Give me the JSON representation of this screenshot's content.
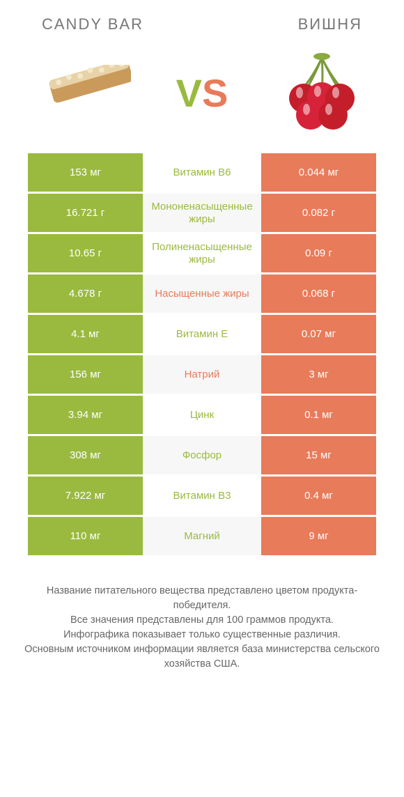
{
  "header": {
    "left": "CANDY BAR",
    "right": "ВИШНЯ"
  },
  "vs": {
    "v": "V",
    "s": "S"
  },
  "colors": {
    "green": "#9aba3f",
    "orange": "#e87b5a",
    "row_alt_bg": "#f7f7f7",
    "text": "#555555",
    "header_text": "#777777"
  },
  "rows": [
    {
      "left": "153 мг",
      "label": "Витамин B6",
      "right": "0.044 мг",
      "winner": "left"
    },
    {
      "left": "16.721 г",
      "label": "Мононенасыщенные жиры",
      "right": "0.082 г",
      "winner": "left"
    },
    {
      "left": "10.65 г",
      "label": "Полиненасыщенные жиры",
      "right": "0.09 г",
      "winner": "left"
    },
    {
      "left": "4.678 г",
      "label": "Насыщенные жиры",
      "right": "0.068 г",
      "winner": "right"
    },
    {
      "left": "4.1 мг",
      "label": "Витамин E",
      "right": "0.07 мг",
      "winner": "left"
    },
    {
      "left": "156 мг",
      "label": "Натрий",
      "right": "3 мг",
      "winner": "right"
    },
    {
      "left": "3.94 мг",
      "label": "Цинк",
      "right": "0.1 мг",
      "winner": "left"
    },
    {
      "left": "308 мг",
      "label": "Фосфор",
      "right": "15 мг",
      "winner": "left"
    },
    {
      "left": "7.922 мг",
      "label": "Витамин B3",
      "right": "0.4 мг",
      "winner": "left"
    },
    {
      "left": "110 мг",
      "label": "Магний",
      "right": "9 мг",
      "winner": "left"
    }
  ],
  "footer": {
    "line1": "Название питательного вещества представлено цветом продукта-победителя.",
    "line2": "Все значения представлены для 100 граммов продукта.",
    "line3": "Инфографика показывает только существенные различия.",
    "line4": "Основным источником информации является база министерства сельского хозяйства США."
  }
}
